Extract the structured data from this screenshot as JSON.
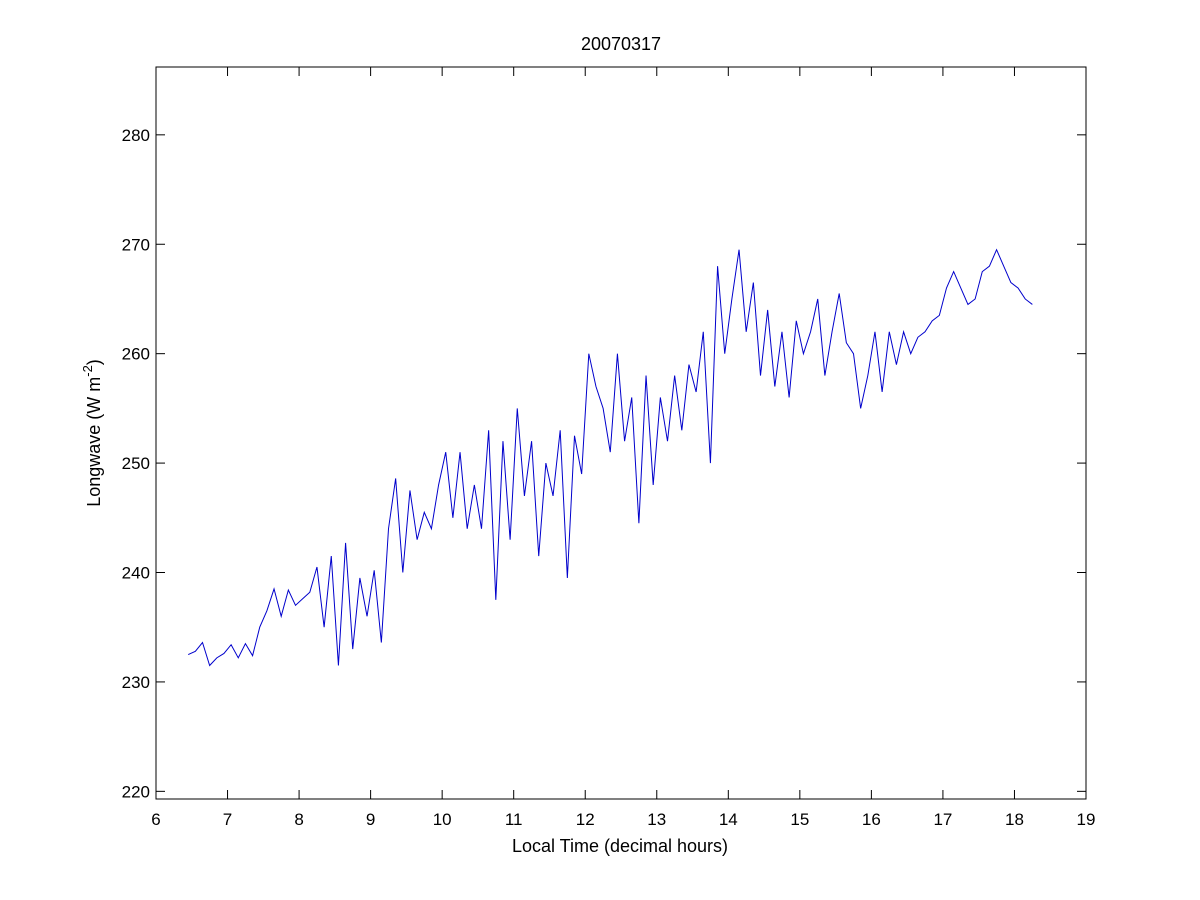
{
  "chart_data": {
    "type": "line",
    "title": "20070317",
    "xlabel": "Local Time (decimal hours)",
    "ylabel": {
      "main": "Longwave (W m",
      "superscript": "-2",
      "suffix": ")"
    },
    "xlim": [
      6,
      19
    ],
    "ylim": [
      219.3,
      286.2
    ],
    "xticks": [
      6,
      7,
      8,
      9,
      10,
      11,
      12,
      13,
      14,
      15,
      16,
      17,
      18,
      19
    ],
    "yticks": [
      220,
      230,
      240,
      250,
      260,
      270,
      280
    ],
    "grid": false,
    "line_color": "#0000CC",
    "series": [
      {
        "x": [
          6.45,
          6.55,
          6.65,
          6.75,
          6.85,
          6.95,
          7.05,
          7.15,
          7.25,
          7.35,
          7.45,
          7.55,
          7.65,
          7.75,
          7.85,
          7.95,
          8.05,
          8.15,
          8.25,
          8.35,
          8.45,
          8.55,
          8.65,
          8.75,
          8.85,
          8.95,
          9.05,
          9.15,
          9.25,
          9.35,
          9.45,
          9.55,
          9.65,
          9.75,
          9.85,
          9.95,
          10.05,
          10.15,
          10.25,
          10.35,
          10.45,
          10.55,
          10.65,
          10.75,
          10.85,
          10.95,
          11.05,
          11.15,
          11.25,
          11.35,
          11.45,
          11.55,
          11.65,
          11.75,
          11.85,
          11.95,
          12.05,
          12.15,
          12.25,
          12.35,
          12.45,
          12.55,
          12.65,
          12.75,
          12.85,
          12.95,
          13.05,
          13.15,
          13.25,
          13.35,
          13.45,
          13.55,
          13.65,
          13.75,
          13.85,
          13.95,
          14.05,
          14.15,
          14.25,
          14.35,
          14.45,
          14.55,
          14.65,
          14.75,
          14.85,
          14.95,
          15.05,
          15.15,
          15.25,
          15.35,
          15.45,
          15.55,
          15.65,
          15.75,
          15.85,
          15.95,
          16.05,
          16.15,
          16.25,
          16.35,
          16.45,
          16.55,
          16.65,
          16.75,
          16.85,
          16.95,
          17.05,
          17.15,
          17.25,
          17.35,
          17.45,
          17.55,
          17.65,
          17.75,
          17.85,
          17.95,
          18.05,
          18.15,
          18.25
        ],
        "y": [
          232.5,
          232.8,
          233.6,
          231.5,
          232.2,
          232.6,
          233.4,
          232.2,
          233.5,
          232.4,
          235.0,
          236.5,
          238.5,
          236.0,
          238.4,
          237.0,
          237.6,
          238.2,
          240.5,
          235.0,
          241.5,
          231.5,
          242.7,
          233.0,
          239.5,
          236.0,
          240.2,
          233.6,
          244.0,
          248.6,
          240.0,
          247.5,
          243.0,
          245.5,
          244.0,
          248.0,
          251.0,
          245.0,
          251.0,
          244.0,
          248.0,
          244.0,
          253.0,
          237.5,
          252.0,
          243.0,
          255.0,
          247.0,
          252.0,
          241.5,
          250.0,
          247.0,
          253.0,
          239.5,
          252.5,
          249.0,
          260.0,
          257.0,
          255.0,
          251.0,
          260.0,
          252.0,
          256.0,
          244.5,
          258.0,
          248.0,
          256.0,
          252.0,
          258.0,
          253.0,
          259.0,
          256.5,
          262.0,
          250.0,
          268.0,
          260.0,
          265.0,
          269.5,
          262.0,
          266.5,
          258.0,
          264.0,
          257.0,
          262.0,
          256.0,
          263.0,
          260.0,
          262.0,
          265.0,
          258.0,
          262.0,
          265.5,
          261.0,
          260.0,
          255.0,
          258.0,
          262.0,
          256.5,
          262.0,
          259.0,
          262.0,
          260.0,
          261.5,
          262.0,
          263.0,
          263.5,
          266.0,
          267.5,
          266.0,
          264.5,
          265.0,
          267.5,
          268.0,
          269.5,
          268.0,
          266.5,
          266.0,
          265.0,
          264.5
        ]
      }
    ]
  }
}
